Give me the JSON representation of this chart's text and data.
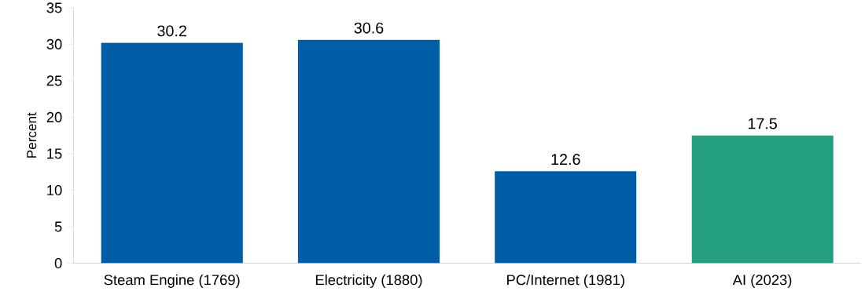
{
  "chart_data": {
    "type": "bar",
    "ylabel": "Percent",
    "categories": [
      "Steam Engine (1769)",
      "Electricity (1880)",
      "PC/Internet (1981)",
      "AI (2023)"
    ],
    "values": [
      30.2,
      30.6,
      12.6,
      17.5
    ],
    "colors": [
      "#005ea8",
      "#005ea8",
      "#005ea8",
      "#239e7f"
    ],
    "ylim": [
      0,
      35
    ],
    "yticks": [
      0,
      5,
      10,
      15,
      20,
      25,
      30,
      35
    ],
    "data_labels": true
  }
}
